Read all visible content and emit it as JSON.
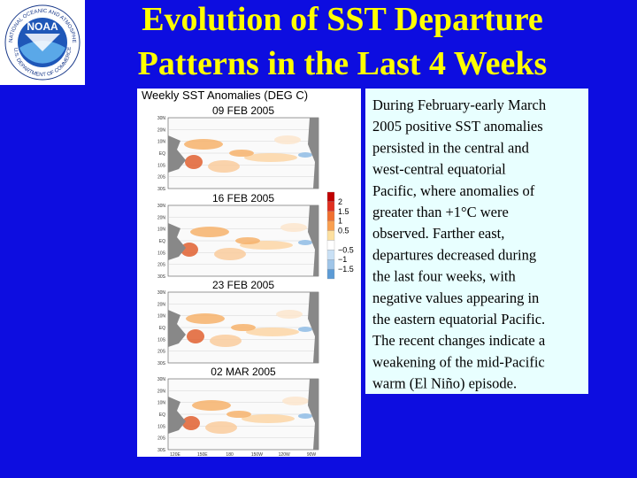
{
  "header": {
    "title_lines": [
      "Evolution of SST Departure",
      "Patterns in the Last 4 Weeks"
    ],
    "logo": {
      "center": "NOAA",
      "ring_top": "NATIONAL OCEANIC AND ATMOSPHERIC ADMINISTRATION",
      "ring_bottom": "U.S. DEPARTMENT OF COMMERCE"
    }
  },
  "figure": {
    "title": "Weekly  SST  Anomalies  (DEG  C)",
    "panels": [
      {
        "title": "09  FEB  2005"
      },
      {
        "title": "16  FEB  2005"
      },
      {
        "title": "23  FEB  2005"
      },
      {
        "title": "02  MAR  2005"
      }
    ],
    "lat_labels": [
      "30N",
      "20N",
      "10N",
      "EQ",
      "10S",
      "20S",
      "30S"
    ],
    "lon_labels": [
      "120E",
      "150E",
      "180",
      "150W",
      "120W",
      "90W"
    ],
    "colorbar_labels": [
      "2",
      "1.5",
      "1",
      "0.5",
      "−0.5",
      "−1",
      "−1.5"
    ]
  },
  "text_box": {
    "lines": [
      "During February-early March",
      "2005 positive SST anomalies",
      "persisted in the central and",
      "west-central equatorial",
      "Pacific, where anomalies of",
      "greater than +1°C were",
      "observed. Farther east,",
      "departures decreased during",
      "the last four weeks, with",
      "negative values appearing in",
      "the eastern equatorial Pacific.",
      "The recent changes indicate a",
      "weakening of the mid-Pacific",
      "warm (El Niño) episode."
    ]
  }
}
